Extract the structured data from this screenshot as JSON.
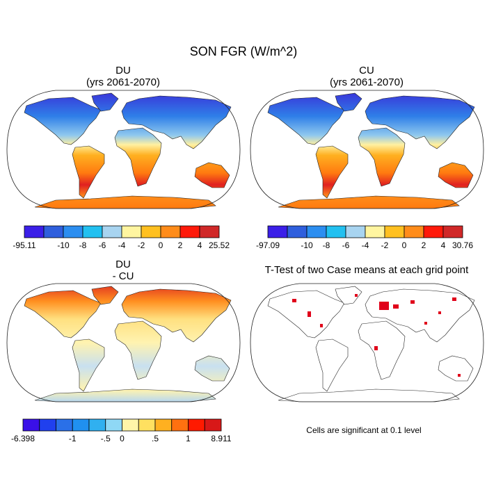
{
  "title": "SON FGR (W/m^2)",
  "panels": [
    {
      "title": "DU",
      "subtitle": "(yrs 2061-2070)",
      "colorbar": {
        "colors": [
          "#3b1fe8",
          "#2f5fdd",
          "#2c8ef0",
          "#22c0f0",
          "#a8d4f0",
          "#fff5a0",
          "#ffc020",
          "#ff8c1a",
          "#ff1a0a",
          "#d02828"
        ],
        "labels": [
          "-95.11",
          null,
          "-10",
          "-8",
          "-6",
          "-4",
          "-2",
          "0",
          "2",
          "4",
          "25.52"
        ]
      }
    },
    {
      "title": "CU",
      "subtitle": "(yrs 2061-2070)",
      "colorbar": {
        "colors": [
          "#3b1fe8",
          "#2f5fdd",
          "#2c8ef0",
          "#22c0f0",
          "#a8d4f0",
          "#fff5a0",
          "#ffc020",
          "#ff8c1a",
          "#ff1a0a",
          "#d02828"
        ],
        "labels": [
          "-97.09",
          null,
          "-10",
          "-8",
          "-6",
          "-4",
          "-2",
          "0",
          "2",
          "4",
          "30.76"
        ]
      }
    },
    {
      "title": "DU",
      "subtitle": "- CU",
      "colorbar": {
        "colors": [
          "#3a10e8",
          "#2040ee",
          "#2a70e8",
          "#2090f0",
          "#30b0f0",
          "#8fd8f5",
          "#fff5a8",
          "#ffe060",
          "#ffb020",
          "#ff7010",
          "#ff1a00",
          "#d81818"
        ],
        "labels": [
          "-6.398",
          null,
          null,
          "-1",
          null,
          "-.5",
          "0",
          null,
          ".5",
          null,
          "1",
          null,
          "8.911"
        ]
      }
    },
    {
      "title": "T-Test of two Case means at each grid point",
      "note": "Cells are significant at 0.1 level"
    }
  ]
}
